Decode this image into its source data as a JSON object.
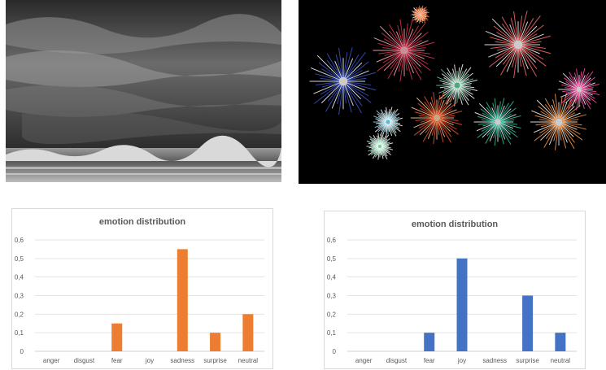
{
  "chart_data": [
    {
      "type": "bar",
      "title": "emotion distribution",
      "categories": [
        "anger",
        "disgust",
        "fear",
        "joy",
        "sadness",
        "surprise",
        "neutral"
      ],
      "values": [
        0,
        0,
        0.15,
        0,
        0.55,
        0.1,
        0.2
      ],
      "ylim": [
        0,
        0.6
      ],
      "yticks": [
        "0",
        "0,1",
        "0,2",
        "0,3",
        "0,4",
        "0,5",
        "0,6"
      ],
      "grid": true,
      "color": "#ed7d31"
    },
    {
      "type": "bar",
      "title": "emotion distribution",
      "categories": [
        "anger",
        "disgust",
        "fear",
        "joy",
        "sadness",
        "surprise",
        "neutral"
      ],
      "values": [
        0,
        0,
        0.1,
        0.5,
        0,
        0.3,
        0.1
      ],
      "ylim": [
        0,
        0.6
      ],
      "yticks": [
        "0",
        "0,1",
        "0,2",
        "0,3",
        "0,4",
        "0,5",
        "0,6"
      ],
      "grid": true,
      "color": "#4472c4"
    }
  ]
}
